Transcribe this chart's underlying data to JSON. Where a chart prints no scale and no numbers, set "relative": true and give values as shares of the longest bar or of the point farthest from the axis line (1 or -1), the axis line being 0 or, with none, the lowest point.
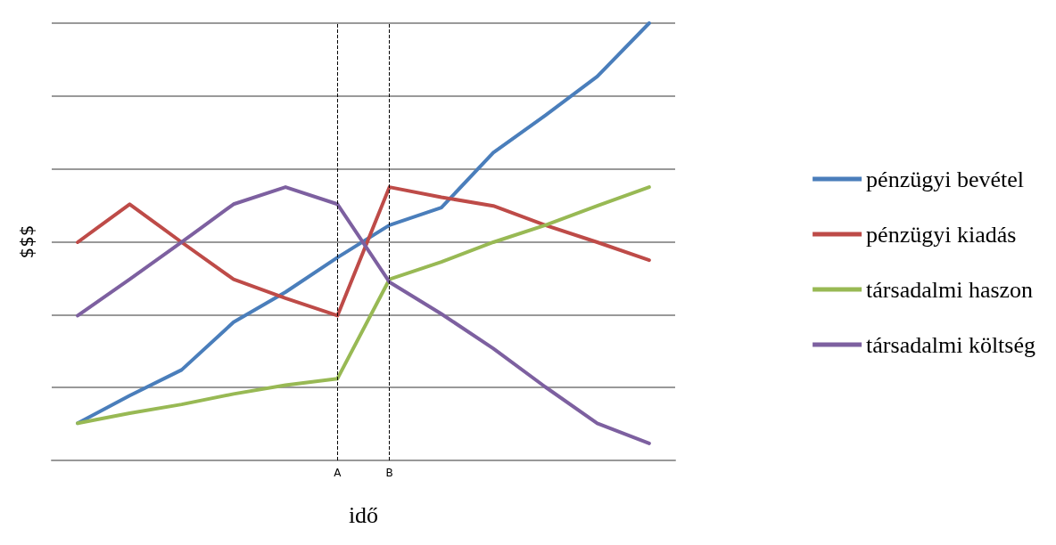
{
  "chart_data": {
    "type": "line",
    "relative": true,
    "xlabel": "idő",
    "ylabel": "$$$",
    "categories": [
      null,
      null,
      null,
      null,
      null,
      "A",
      "B",
      null,
      null,
      null,
      null,
      null
    ],
    "series": [
      {
        "name": "pénzügyi bevétel",
        "color": "#4a7ebb",
        "values": [
          0.085,
          0.148,
          0.207,
          0.316,
          0.385,
          0.464,
          0.538,
          0.578,
          0.704,
          0.789,
          0.878,
          1
        ]
      },
      {
        "name": "pénzügyi kiadás",
        "color": "#be4b48",
        "values": [
          0.499,
          0.586,
          0.499,
          0.414,
          0.371,
          0.331,
          0.625,
          0.602,
          0.582,
          0.538,
          0.499,
          0.458
        ]
      },
      {
        "name": "társadalmi haszon",
        "color": "#98b954",
        "values": [
          0.085,
          0.108,
          0.128,
          0.152,
          0.172,
          0.187,
          0.414,
          0.454,
          0.499,
          0.538,
          0.582,
          0.625
        ]
      },
      {
        "name": "társadalmi költség",
        "color": "#7d60a0",
        "values": [
          0.331,
          0.414,
          0.499,
          0.586,
          0.625,
          0.586,
          0.408,
          0.335,
          0.256,
          0.168,
          0.085,
          0.039
        ]
      }
    ],
    "ref_lines": [
      {
        "axis": "x",
        "value": "A",
        "label": null,
        "color": "#000000",
        "line_style": "dashed"
      },
      {
        "axis": "x",
        "value": "B",
        "label": null,
        "color": "#000000",
        "line_style": "dashed"
      }
    ],
    "grid": "y",
    "legend": "right",
    "marker": "none",
    "line_style": "solid"
  }
}
